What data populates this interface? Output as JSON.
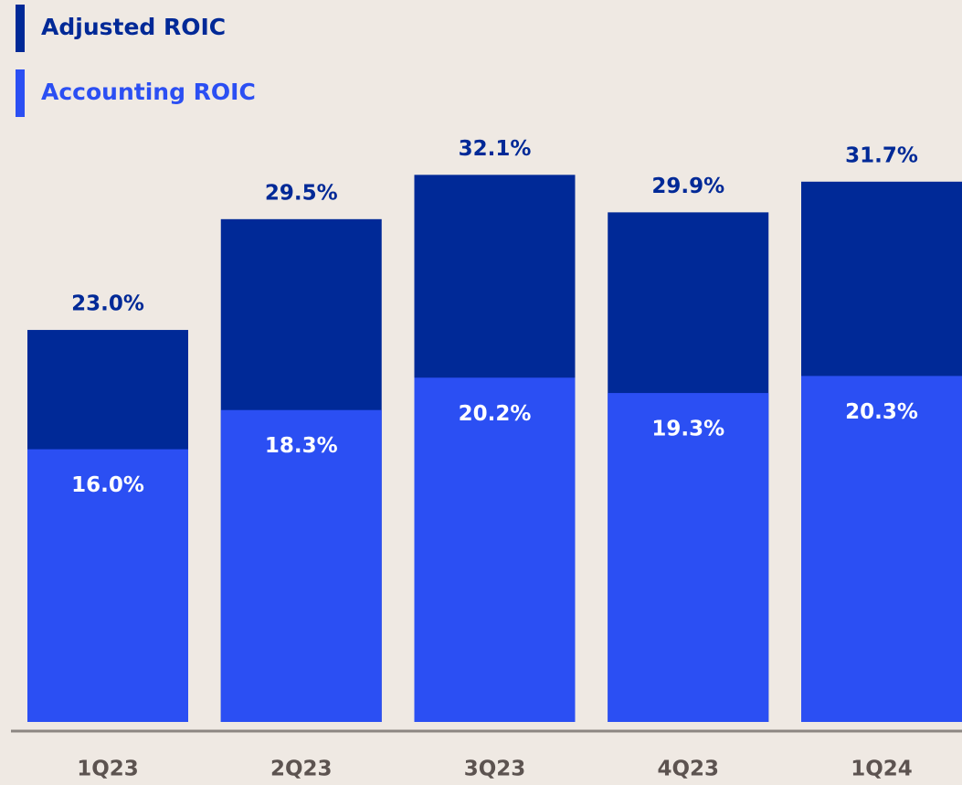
{
  "chart_data": {
    "type": "bar",
    "categories": [
      "1Q23",
      "2Q23",
      "3Q23",
      "4Q23",
      "1Q24"
    ],
    "series": [
      {
        "name": "Adjusted ROIC",
        "color": "#002997",
        "values": [
          23.0,
          29.5,
          32.1,
          29.9,
          31.7
        ],
        "value_labels": [
          "23.0%",
          "29.5%",
          "32.1%",
          "29.9%",
          "31.7%"
        ]
      },
      {
        "name": "Accounting ROIC",
        "color": "#2b4ff3",
        "values": [
          16.0,
          18.3,
          20.2,
          19.3,
          20.3
        ],
        "value_labels": [
          "16.0%",
          "18.3%",
          "20.2%",
          "19.3%",
          "20.3%"
        ]
      }
    ]
  }
}
